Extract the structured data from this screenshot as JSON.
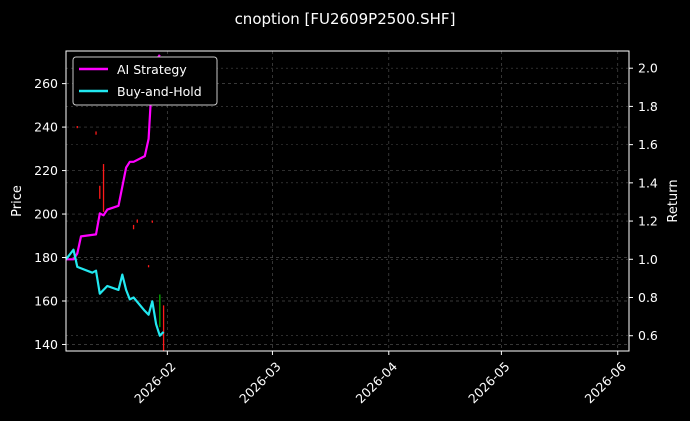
{
  "chart_data": {
    "type": "line",
    "title": "cnoption [FU2609P2500.SHF]",
    "xlabel": "",
    "ylabel": "Price",
    "y2label": "Return",
    "x_ticks": [
      "2026-02",
      "2026-03",
      "2026-04",
      "2026-05",
      "2026-06"
    ],
    "y_ticks": [
      140,
      160,
      180,
      200,
      220,
      240,
      260
    ],
    "y2_ticks": [
      "0.6",
      "0.8",
      "1.0",
      "1.2",
      "1.4",
      "1.6",
      "1.8",
      "2.0"
    ],
    "ylim": [
      137,
      275
    ],
    "y2lim": [
      0.52,
      2.09
    ],
    "xlim": [
      "2026-01-05",
      "2026-06-04"
    ],
    "grid": true,
    "legend_position": "upper-left",
    "series": [
      {
        "name": "AI Strategy",
        "color": "#ff00ff",
        "axis": "return",
        "points": [
          [
            "2026-01-05",
            1.0
          ],
          [
            "2026-01-07",
            1.0
          ],
          [
            "2026-01-08",
            1.03
          ],
          [
            "2026-01-09",
            1.12
          ],
          [
            "2026-01-13",
            1.13
          ],
          [
            "2026-01-14",
            1.24
          ],
          [
            "2026-01-15",
            1.23
          ],
          [
            "2026-01-16",
            1.26
          ],
          [
            "2026-01-19",
            1.28
          ],
          [
            "2026-01-21",
            1.48
          ],
          [
            "2026-01-22",
            1.51
          ],
          [
            "2026-01-23",
            1.51
          ],
          [
            "2026-01-26",
            1.54
          ],
          [
            "2026-01-27",
            1.63
          ],
          [
            "2026-01-28",
            1.97
          ],
          [
            "2026-01-29",
            2.04
          ],
          [
            "2026-01-30",
            2.07
          ]
        ]
      },
      {
        "name": "Buy-and-Hold",
        "color": "#22e8f0",
        "axis": "return",
        "points": [
          [
            "2026-01-05",
            1.0
          ],
          [
            "2026-01-07",
            1.05
          ],
          [
            "2026-01-08",
            0.96
          ],
          [
            "2026-01-12",
            0.93
          ],
          [
            "2026-01-13",
            0.94
          ],
          [
            "2026-01-14",
            0.82
          ],
          [
            "2026-01-15",
            0.84
          ],
          [
            "2026-01-16",
            0.86
          ],
          [
            "2026-01-19",
            0.84
          ],
          [
            "2026-01-20",
            0.92
          ],
          [
            "2026-01-21",
            0.84
          ],
          [
            "2026-01-22",
            0.79
          ],
          [
            "2026-01-23",
            0.8
          ],
          [
            "2026-01-26",
            0.73
          ],
          [
            "2026-01-27",
            0.71
          ],
          [
            "2026-01-28",
            0.78
          ],
          [
            "2026-01-29",
            0.66
          ],
          [
            "2026-01-30",
            0.6
          ],
          [
            "2026-01-31",
            0.62
          ]
        ]
      }
    ],
    "candlestick_marks": [
      {
        "date": "2026-01-08",
        "low": 239.5,
        "high": 240.5,
        "direction": "down"
      },
      {
        "date": "2026-01-13",
        "low": 236.5,
        "high": 238.0,
        "direction": "down"
      },
      {
        "date": "2026-01-14",
        "low": 207.0,
        "high": 213.0,
        "direction": "down"
      },
      {
        "date": "2026-01-15",
        "low": 201.0,
        "high": 223.0,
        "direction": "down"
      },
      {
        "date": "2026-01-23",
        "low": 193.0,
        "high": 195.0,
        "direction": "down"
      },
      {
        "date": "2026-01-24",
        "low": 196.0,
        "high": 197.5,
        "direction": "down"
      },
      {
        "date": "2026-01-27",
        "low": 175.5,
        "high": 176.5,
        "direction": "down"
      },
      {
        "date": "2026-01-28",
        "low": 196.0,
        "high": 197.0,
        "direction": "down"
      },
      {
        "date": "2026-01-30",
        "low": 148.0,
        "high": 163.0,
        "direction": "up"
      },
      {
        "date": "2026-01-31",
        "low": 137.0,
        "high": 158.0,
        "direction": "down"
      }
    ],
    "colors": {
      "background": "#000000",
      "text": "#ffffff",
      "grid": "#4a4a4a",
      "up": "#00b000",
      "down": "#ff1a1a"
    }
  }
}
